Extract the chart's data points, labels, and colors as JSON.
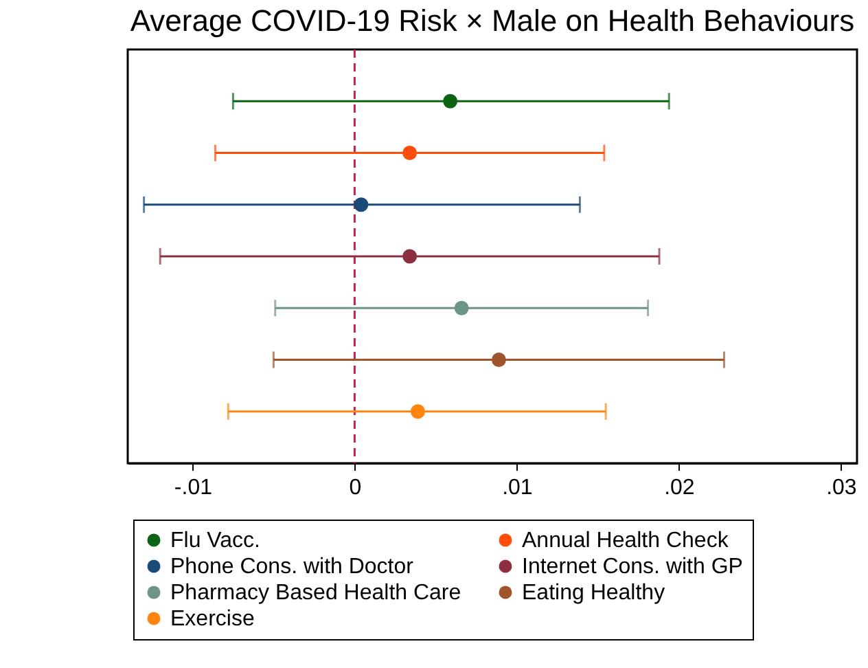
{
  "chart_data": {
    "type": "scatter",
    "orientation": "horizontal",
    "title": "Average COVID-19 Risk × Male on Health Behaviours",
    "categories": [
      null,
      null,
      null,
      null,
      null,
      null,
      null
    ],
    "series": [
      {
        "name": "Flu Vacc.",
        "color": "#0a6414",
        "values": [
          0.0059,
          null,
          null,
          null,
          null,
          null,
          null
        ],
        "errors": [
          [
            -0.0075,
            0.0194
          ],
          null,
          null,
          null,
          null,
          null,
          null
        ]
      },
      {
        "name": "Annual Health Check",
        "color": "#ff4d0a",
        "values": [
          null,
          0.0034,
          null,
          null,
          null,
          null,
          null
        ],
        "errors": [
          null,
          [
            -0.0086,
            0.0154
          ],
          null,
          null,
          null,
          null,
          null
        ]
      },
      {
        "name": "Phone Cons. with Doctor",
        "color": "#1a4a78",
        "values": [
          null,
          null,
          0.0004,
          null,
          null,
          null,
          null
        ],
        "errors": [
          null,
          null,
          [
            -0.013,
            0.0139
          ],
          null,
          null,
          null,
          null
        ]
      },
      {
        "name": "Internet Cons. with GP",
        "color": "#8c3040",
        "values": [
          null,
          null,
          null,
          0.0034,
          null,
          null,
          null
        ],
        "errors": [
          null,
          null,
          null,
          [
            -0.012,
            0.0188
          ],
          null,
          null,
          null
        ]
      },
      {
        "name": "Pharmacy Based Health Care",
        "color": "#6e9488",
        "values": [
          null,
          null,
          null,
          null,
          0.0066,
          null,
          null
        ],
        "errors": [
          null,
          null,
          null,
          null,
          [
            -0.0049,
            0.0181
          ],
          null,
          null
        ]
      },
      {
        "name": "Eating Healthy",
        "color": "#a0542c",
        "values": [
          null,
          null,
          null,
          null,
          null,
          0.0089,
          null
        ],
        "errors": [
          null,
          null,
          null,
          null,
          null,
          [
            -0.005,
            0.0228
          ],
          null
        ]
      },
      {
        "name": "Exercise",
        "color": "#ff8410",
        "values": [
          null,
          null,
          null,
          null,
          null,
          null,
          0.0039
        ],
        "errors": [
          null,
          null,
          null,
          null,
          null,
          null,
          [
            -0.0078,
            0.0155
          ]
        ]
      }
    ],
    "xlim": [
      -0.014,
      0.031
    ],
    "xticks": [
      {
        "value": -0.01,
        "label": "-.01"
      },
      0,
      {
        "value": 0.01,
        "label": ".01"
      },
      {
        "value": 0.02,
        "label": ".02"
      },
      {
        "value": 0.03,
        "label": ".03"
      }
    ],
    "ref_lines": [
      {
        "axis": "x",
        "value": 0,
        "color": "#c8204a",
        "line_style": "dashed"
      }
    ],
    "marker": "circle",
    "grid": false,
    "legend": "bottom"
  }
}
